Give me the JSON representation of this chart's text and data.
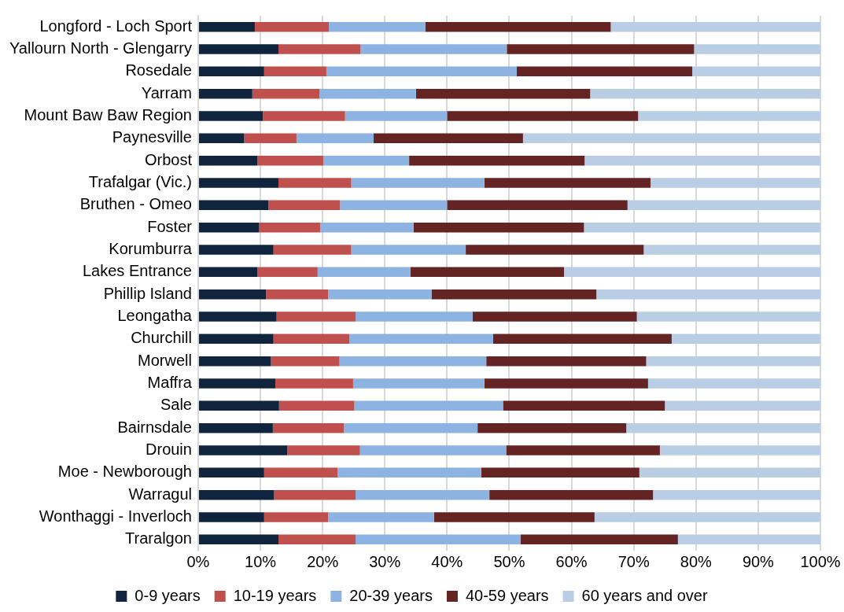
{
  "chart_data": {
    "type": "bar",
    "orientation": "horizontal",
    "stacked": true,
    "categories": [
      "Longford - Loch Sport",
      "Yallourn North - Glengarry",
      "Rosedale",
      "Yarram",
      "Mount Baw Baw Region",
      "Paynesville",
      "Orbost",
      "Trafalgar (Vic.)",
      "Bruthen - Omeo",
      "Foster",
      "Korumburra",
      "Lakes Entrance",
      "Phillip Island",
      "Leongatha",
      "Churchill",
      "Morwell",
      "Maffra",
      "Sale",
      "Bairnsdale",
      "Drouin",
      "Moe - Newborough",
      "Warragul",
      "Wonthaggi - Inverloch",
      "Traralgon"
    ],
    "series": [
      {
        "name": "0-9 years",
        "color": "#10243e",
        "values": [
          9.1,
          12.9,
          10.6,
          8.7,
          10.4,
          7.4,
          9.5,
          12.9,
          11.3,
          9.8,
          12.1,
          9.5,
          10.9,
          12.6,
          12.1,
          11.7,
          12.4,
          13.0,
          12.0,
          14.3,
          10.6,
          12.2,
          10.6,
          12.9
        ]
      },
      {
        "name": "10-19 years",
        "color": "#c0504d",
        "values": [
          11.9,
          13.2,
          10.0,
          10.8,
          13.2,
          8.4,
          10.6,
          11.7,
          11.5,
          9.8,
          12.5,
          9.7,
          10.0,
          12.7,
          12.2,
          11.0,
          12.5,
          12.1,
          11.4,
          11.7,
          11.8,
          13.1,
          10.3,
          12.4
        ]
      },
      {
        "name": "20-39 years",
        "color": "#8db3e2",
        "values": [
          15.5,
          23.5,
          30.6,
          15.5,
          16.4,
          12.4,
          13.8,
          21.4,
          17.2,
          15.0,
          18.4,
          14.9,
          16.6,
          18.8,
          23.1,
          23.6,
          21.1,
          23.9,
          21.5,
          23.5,
          23.1,
          21.5,
          17.0,
          26.5
        ]
      },
      {
        "name": "40-59 years",
        "color": "#632423",
        "values": [
          29.8,
          30.1,
          28.2,
          28.0,
          30.7,
          24.0,
          28.2,
          26.7,
          29.0,
          27.4,
          28.6,
          24.7,
          26.5,
          26.4,
          28.7,
          25.7,
          26.3,
          26.0,
          23.9,
          24.7,
          25.4,
          26.3,
          25.8,
          25.3
        ]
      },
      {
        "name": "60 years and over",
        "color": "#b9cde5",
        "values": [
          33.7,
          20.3,
          20.6,
          37.0,
          29.3,
          47.8,
          37.9,
          27.3,
          31.0,
          38.0,
          28.4,
          41.2,
          36.0,
          29.5,
          23.9,
          28.0,
          27.7,
          25.0,
          31.2,
          25.8,
          29.1,
          26.9,
          36.3,
          22.9
        ]
      }
    ],
    "xlim": [
      0,
      100
    ],
    "xticks": [
      {
        "value": 0,
        "label": "0%"
      },
      {
        "value": 10,
        "label": "10%"
      },
      {
        "value": 20,
        "label": "20%"
      },
      {
        "value": 30,
        "label": "30%"
      },
      {
        "value": 40,
        "label": "40%"
      },
      {
        "value": 50,
        "label": "50%"
      },
      {
        "value": 60,
        "label": "60%"
      },
      {
        "value": 70,
        "label": "70%"
      },
      {
        "value": 80,
        "label": "80%"
      },
      {
        "value": 90,
        "label": "90%"
      },
      {
        "value": 100,
        "label": "100%"
      }
    ],
    "grid": "x",
    "legend": "bottom"
  }
}
